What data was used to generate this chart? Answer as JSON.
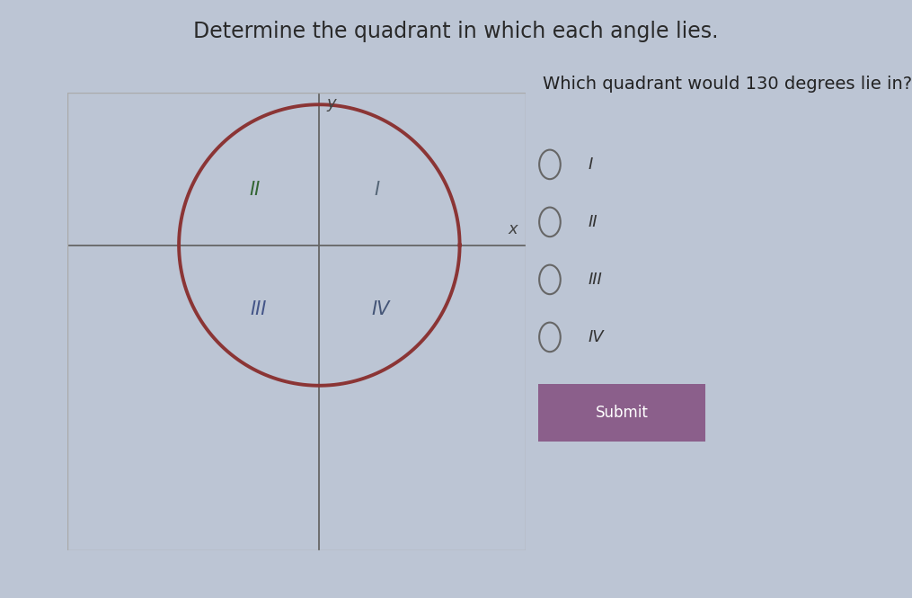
{
  "title": "Determine the quadrant in which each angle lies.",
  "title_fontsize": 17,
  "title_color": "#2a2a2a",
  "background_color": "#bcc5d4",
  "plot_bg_color": "#dce5ef",
  "circle_color": "#8b3535",
  "circle_linewidth": 2.8,
  "axis_color": "#666666",
  "axis_linewidth": 1.3,
  "quad_I_label": "I",
  "quad_II_label": "II",
  "quad_III_label": "III",
  "quad_IV_label": "IV",
  "quad_I_color": "#556677",
  "quad_II_color": "#336633",
  "quad_III_color": "#445588",
  "quad_IV_color": "#445577",
  "quadrant_fontsize": 15,
  "x_label": "x",
  "y_label": "y",
  "axis_label_fontsize": 13,
  "axis_label_color": "#444444",
  "question_text": "Which quadrant would 130 degrees lie in?",
  "question_fontsize": 14,
  "question_color": "#222222",
  "radio_options": [
    "I",
    "II",
    "III",
    "IV"
  ],
  "radio_fontsize": 13,
  "radio_color": "#333333",
  "submit_text": "Submit",
  "submit_bg": "#8b5f8b",
  "submit_text_color": "#ffffff",
  "submit_fontsize": 12,
  "box_edge_color": "#aaaaaa",
  "right_bg": "#c8d2e0"
}
